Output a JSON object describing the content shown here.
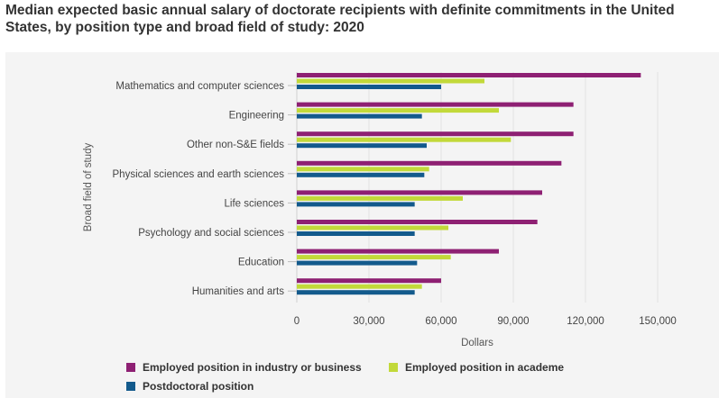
{
  "chart_data": {
    "type": "bar",
    "orientation": "horizontal",
    "title": "Median expected basic annual salary of doctorate recipients with definite commitments in the United States, by position type and broad field of study: 2020",
    "xlabel": "Dollars",
    "ylabel": "Broad field of study",
    "xlim": [
      0,
      150000
    ],
    "xticks": [
      0,
      30000,
      60000,
      90000,
      120000,
      150000
    ],
    "xtick_labels": [
      "0",
      "30,000",
      "60,000",
      "90,000",
      "120,000",
      "150,000"
    ],
    "categories": [
      "Mathematics and computer sciences",
      "Engineering",
      "Other non-S&E fields",
      "Physical sciences and earth sciences",
      "Life sciences",
      "Psychology and social sciences",
      "Education",
      "Humanities and arts"
    ],
    "series": [
      {
        "name": "Employed position in industry or business",
        "color": "#8e2073",
        "values": [
          143000,
          115000,
          115000,
          110000,
          102000,
          100000,
          84000,
          60000
        ]
      },
      {
        "name": "Employed position in academe",
        "color": "#c2d93a",
        "values": [
          78000,
          84000,
          89000,
          55000,
          69000,
          63000,
          64000,
          52000
        ]
      },
      {
        "name": "Postdoctoral position",
        "color": "#135a8c",
        "values": [
          60000,
          52000,
          54000,
          53000,
          49000,
          49000,
          50000,
          49000
        ]
      }
    ],
    "grid": true,
    "legend_position": "bottom"
  }
}
